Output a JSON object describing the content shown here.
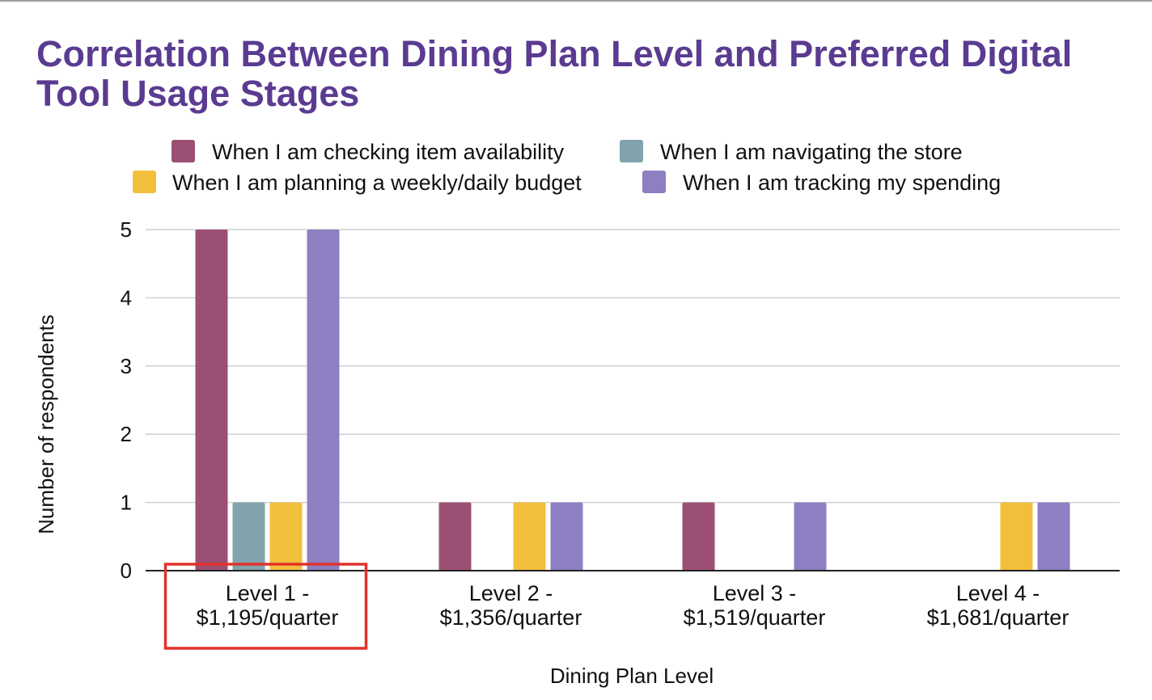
{
  "colors": {
    "title": "#5b3b91",
    "grid": "#cfcfcf",
    "axis": "#222222",
    "highlight": "#e2322b"
  },
  "chart_data": {
    "type": "bar",
    "title": "Correlation Between Dining Plan Level and Preferred Digital Tool Usage Stages",
    "xlabel": "Dining Plan Level",
    "ylabel": "Number of respondents",
    "ylim": [
      0,
      5
    ],
    "yticks": [
      0,
      1,
      2,
      3,
      4,
      5
    ],
    "categories": [
      [
        "Level 1 -",
        "$1,195/quarter"
      ],
      [
        "Level 2 -",
        "$1,356/quarter"
      ],
      [
        "Level 3 -",
        "$1,519/quarter"
      ],
      [
        "Level 4 -",
        "$1,681/quarter"
      ]
    ],
    "highlighted_category": 0,
    "legend_position": "top",
    "series": [
      {
        "name": "When I am checking item availability",
        "color": "#9b4f74",
        "values": [
          5,
          1,
          1,
          0
        ]
      },
      {
        "name": "When I am navigating the store",
        "color": "#81a3ad",
        "values": [
          1,
          0,
          0,
          0
        ]
      },
      {
        "name": "When I am planning a weekly/daily budget",
        "color": "#f2bf3c",
        "values": [
          1,
          1,
          0,
          1
        ]
      },
      {
        "name": "When I am tracking my spending",
        "color": "#8e7fc2",
        "values": [
          5,
          1,
          1,
          1
        ]
      }
    ]
  }
}
